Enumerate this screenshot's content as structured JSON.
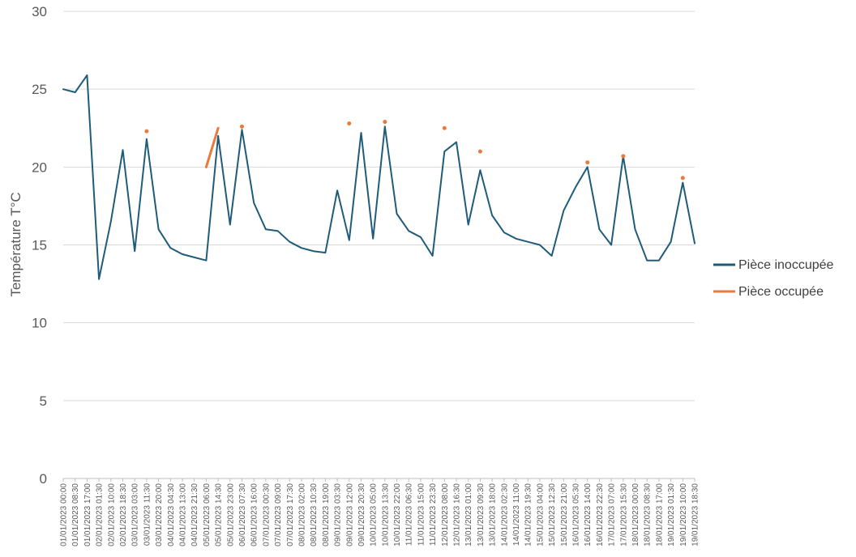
{
  "chart_data": {
    "type": "line",
    "title": "",
    "xlabel": "",
    "ylabel": "Température T°C",
    "ylim": [
      0,
      30
    ],
    "yticks": [
      "0",
      "5",
      "10",
      "15",
      "20",
      "25",
      "30"
    ],
    "grid": true,
    "legend_position": "right",
    "x": [
      "01/01/2023 00:00",
      "01/01/2023 08:30",
      "01/01/2023 17:00",
      "02/01/2023 01:30",
      "02/01/2023 10:00",
      "02/01/2023 18:30",
      "03/01/2023 03:00",
      "03/01/2023 11:30",
      "03/01/2023 20:00",
      "04/01/2023 04:30",
      "04/01/2023 13:00",
      "04/01/2023 21:30",
      "05/01/2023 06:00",
      "05/01/2023 14:30",
      "05/01/2023 23:00",
      "06/01/2023 07:30",
      "06/01/2023 16:00",
      "07/01/2023 00:30",
      "07/01/2023 09:00",
      "07/01/2023 17:30",
      "08/01/2023 02:00",
      "08/01/2023 10:30",
      "08/01/2023 19:00",
      "09/01/2023 03:30",
      "09/01/2023 12:00",
      "09/01/2023 20:30",
      "10/01/2023 05:00",
      "10/01/2023 13:30",
      "10/01/2023 22:00",
      "11/01/2023 06:30",
      "11/01/2023 15:00",
      "11/01/2023 23:30",
      "12/01/2023 08:00",
      "12/01/2023 16:30",
      "13/01/2023 01:00",
      "13/01/2023 09:30",
      "13/01/2023 18:00",
      "14/01/2023 02:30",
      "14/01/2023 11:00",
      "14/01/2023 19:30",
      "15/01/2023 04:00",
      "15/01/2023 12:30",
      "15/01/2023 21:00",
      "16/01/2023 05:30",
      "16/01/2023 14:00",
      "16/01/2023 22:30",
      "17/01/2023 07:00",
      "17/01/2023 15:30",
      "18/01/2023 00:00",
      "18/01/2023 08:30",
      "18/01/2023 17:00",
      "19/01/2023 01:30",
      "19/01/2023 10:00",
      "19/01/2023 18:30"
    ],
    "series": [
      {
        "name": "Pièce inoccupée",
        "color": "#1f5c7a",
        "values": [
          25.0,
          24.8,
          25.9,
          12.8,
          16.5,
          21.1,
          14.6,
          21.8,
          16.0,
          14.8,
          14.4,
          14.2,
          14.0,
          22.0,
          16.3,
          22.4,
          17.7,
          16.0,
          15.9,
          15.2,
          14.8,
          14.6,
          14.5,
          18.5,
          15.3,
          22.2,
          15.4,
          22.6,
          17.0,
          15.9,
          15.5,
          14.3,
          21.0,
          21.6,
          16.3,
          19.8,
          16.9,
          15.8,
          15.4,
          15.2,
          15.0,
          14.3,
          17.2,
          18.7,
          20.0,
          16.0,
          15.0,
          20.7,
          16.0,
          14.0,
          14.0,
          15.2,
          19.0,
          15.1
        ]
      },
      {
        "name": "Pièce occupée",
        "color": "#e87a3c",
        "values": [
          null,
          null,
          null,
          null,
          null,
          null,
          null,
          22.3,
          null,
          null,
          null,
          null,
          20.0,
          22.5,
          null,
          22.6,
          null,
          null,
          null,
          null,
          null,
          null,
          null,
          null,
          22.8,
          null,
          null,
          22.9,
          null,
          null,
          null,
          null,
          22.5,
          null,
          null,
          21.0,
          null,
          null,
          null,
          null,
          null,
          null,
          null,
          null,
          20.3,
          null,
          null,
          20.7,
          null,
          null,
          null,
          null,
          19.3,
          null
        ]
      }
    ]
  }
}
